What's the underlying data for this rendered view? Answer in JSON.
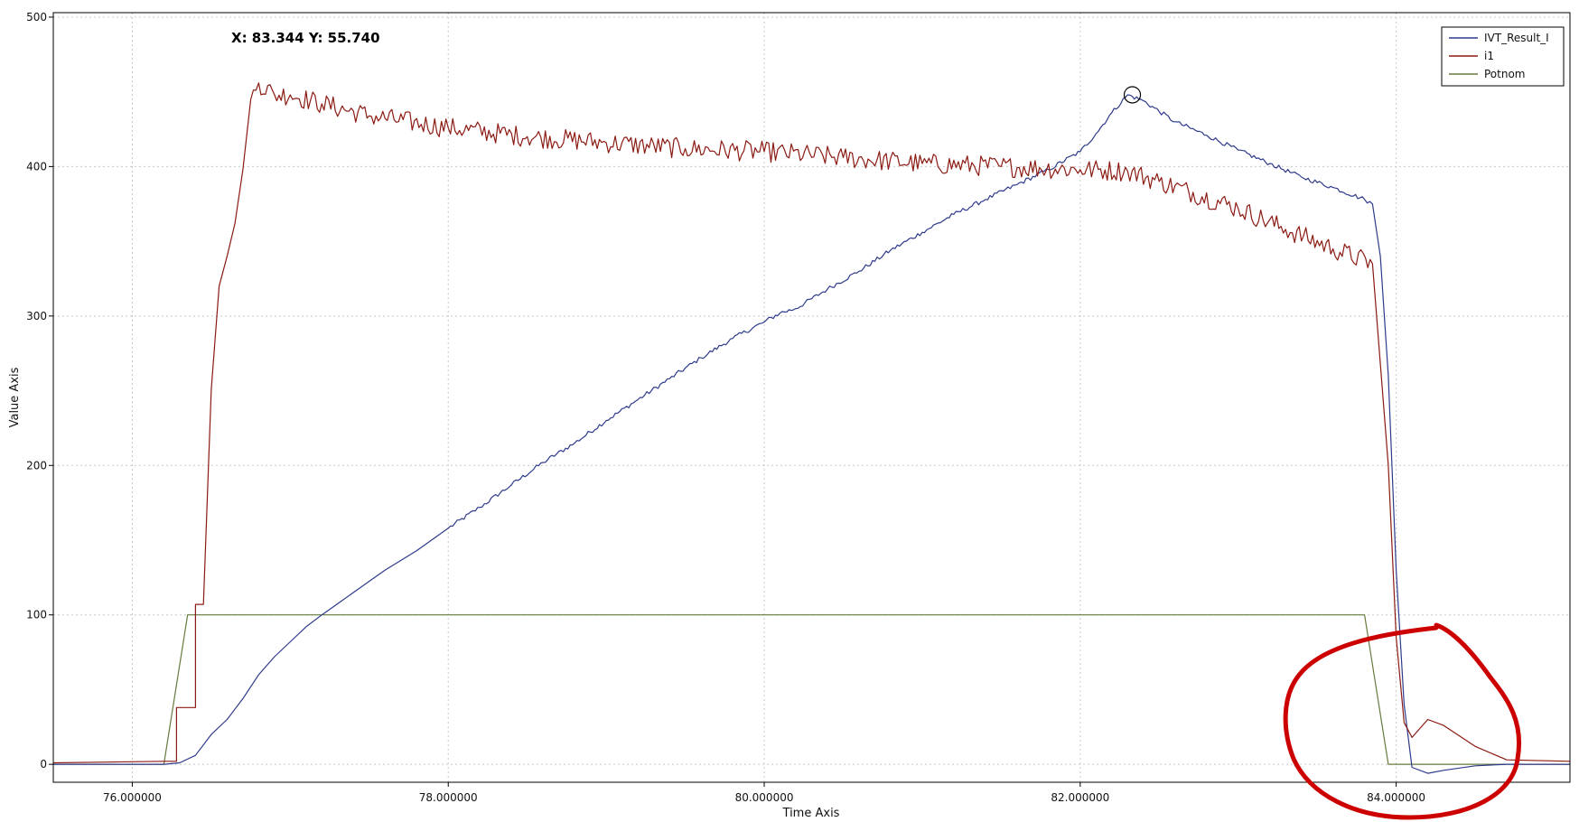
{
  "readout": {
    "label": "X: 83.344 Y: 55.740"
  },
  "colors": {
    "IVT_Result_I": "#2e3a8c",
    "i1": "#8b1a12",
    "Potnom": "#667a3c",
    "grid": "#c8c8c8",
    "annotation": "#cc0000"
  },
  "chart_data": {
    "type": "line",
    "title": "",
    "xlabel": "Time Axis",
    "ylabel": "Value Axis",
    "xlim": [
      75.5,
      85.1
    ],
    "ylim": [
      -12,
      503
    ],
    "grid": true,
    "legend": "top-right",
    "x_ticks": [
      {
        "value": 76,
        "label": "76.000000"
      },
      {
        "value": 78,
        "label": "78.000000"
      },
      {
        "value": 80,
        "label": "80.000000"
      },
      {
        "value": 82,
        "label": "82.000000"
      },
      {
        "value": 84,
        "label": "84.000000"
      }
    ],
    "y_ticks": [
      {
        "value": 0,
        "label": "0"
      },
      {
        "value": 100,
        "label": "100"
      },
      {
        "value": 200,
        "label": "200"
      },
      {
        "value": 300,
        "label": "300"
      },
      {
        "value": 400,
        "label": "400"
      },
      {
        "value": 500,
        "label": "500"
      }
    ],
    "marker": {
      "x": 82.33,
      "y": 448
    },
    "series": [
      {
        "name": "IVT_Result_I",
        "points": [
          [
            75.5,
            0
          ],
          [
            76.2,
            0
          ],
          [
            76.3,
            1
          ],
          [
            76.4,
            6
          ],
          [
            76.5,
            20
          ],
          [
            76.6,
            30
          ],
          [
            76.7,
            44
          ],
          [
            76.8,
            60
          ],
          [
            76.9,
            72
          ],
          [
            77.0,
            82
          ],
          [
            77.1,
            92
          ],
          [
            77.2,
            100
          ],
          [
            77.4,
            115
          ],
          [
            77.6,
            130
          ],
          [
            77.8,
            143
          ],
          [
            78.0,
            158
          ],
          [
            78.2,
            172
          ],
          [
            78.4,
            187
          ],
          [
            78.6,
            202
          ],
          [
            78.8,
            215
          ],
          [
            79.0,
            230
          ],
          [
            79.2,
            244
          ],
          [
            79.4,
            258
          ],
          [
            79.6,
            272
          ],
          [
            79.8,
            285
          ],
          [
            80.0,
            296
          ],
          [
            80.1,
            302
          ],
          [
            80.2,
            305
          ],
          [
            80.4,
            318
          ],
          [
            80.6,
            330
          ],
          [
            80.8,
            344
          ],
          [
            81.0,
            356
          ],
          [
            81.2,
            368
          ],
          [
            81.4,
            378
          ],
          [
            81.6,
            388
          ],
          [
            81.8,
            398
          ],
          [
            82.0,
            410
          ],
          [
            82.1,
            422
          ],
          [
            82.2,
            436
          ],
          [
            82.3,
            448
          ],
          [
            82.4,
            444
          ],
          [
            82.6,
            430
          ],
          [
            82.8,
            421
          ],
          [
            83.0,
            411
          ],
          [
            83.2,
            402
          ],
          [
            83.4,
            393
          ],
          [
            83.6,
            386
          ],
          [
            83.8,
            378
          ],
          [
            83.85,
            375
          ],
          [
            83.9,
            340
          ],
          [
            83.95,
            260
          ],
          [
            84.0,
            130
          ],
          [
            84.05,
            40
          ],
          [
            84.1,
            -2
          ],
          [
            84.2,
            -6
          ],
          [
            84.3,
            -4
          ],
          [
            84.5,
            -1
          ],
          [
            84.7,
            0
          ],
          [
            85.1,
            0
          ]
        ],
        "noise": 1.5
      },
      {
        "name": "i1",
        "points": [
          [
            75.5,
            1
          ],
          [
            76.2,
            2
          ],
          [
            76.28,
            2
          ],
          [
            76.28,
            38
          ],
          [
            76.4,
            38
          ],
          [
            76.4,
            107
          ],
          [
            76.45,
            107
          ],
          [
            76.5,
            251
          ],
          [
            76.55,
            320
          ],
          [
            76.6,
            340
          ],
          [
            76.65,
            362
          ],
          [
            76.7,
            398
          ],
          [
            76.75,
            445
          ],
          [
            76.8,
            456
          ],
          [
            76.9,
            448
          ],
          [
            77.0,
            448
          ],
          [
            77.2,
            442
          ],
          [
            77.5,
            434
          ],
          [
            78.0,
            426
          ],
          [
            78.5,
            420
          ],
          [
            79.0,
            416
          ],
          [
            79.5,
            412
          ],
          [
            80.0,
            410
          ],
          [
            80.5,
            406
          ],
          [
            81.0,
            402
          ],
          [
            81.5,
            400
          ],
          [
            82.0,
            398
          ],
          [
            82.3,
            397
          ],
          [
            82.5,
            390
          ],
          [
            83.0,
            372
          ],
          [
            83.3,
            358
          ],
          [
            83.6,
            345
          ],
          [
            83.85,
            335
          ],
          [
            83.95,
            200
          ],
          [
            84.0,
            85
          ],
          [
            84.05,
            28
          ],
          [
            84.1,
            18
          ],
          [
            84.2,
            30
          ],
          [
            84.3,
            26
          ],
          [
            84.5,
            12
          ],
          [
            84.7,
            3
          ],
          [
            85.1,
            2
          ]
        ],
        "noise": 7
      },
      {
        "name": "Potnom",
        "points": [
          [
            75.5,
            0
          ],
          [
            76.2,
            0
          ],
          [
            76.35,
            100
          ],
          [
            83.8,
            100
          ],
          [
            83.95,
            0
          ],
          [
            85.1,
            0
          ]
        ],
        "noise": 0
      }
    ]
  }
}
